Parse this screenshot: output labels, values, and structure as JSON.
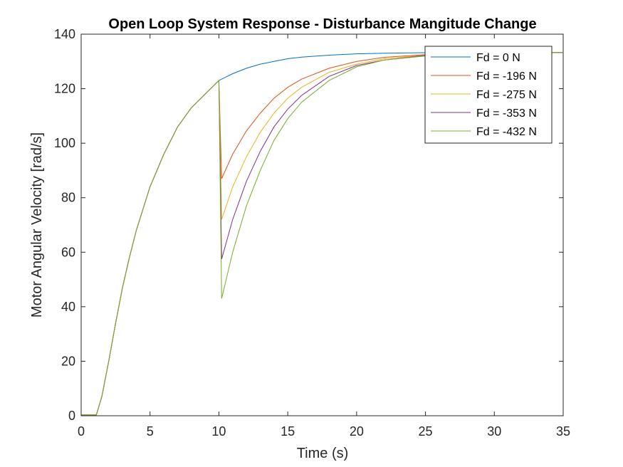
{
  "chart_data": {
    "type": "line",
    "title": "Open Loop System Response - Disturbance Mangitude Change",
    "xlabel": "Time (s)",
    "ylabel": "Motor Angular Velocity [rad/s]",
    "xlim": [
      0,
      35
    ],
    "ylim": [
      0,
      140
    ],
    "xticks": [
      "0",
      "5",
      "10",
      "15",
      "20",
      "25",
      "30",
      "35"
    ],
    "yticks": [
      "0",
      "20",
      "40",
      "60",
      "80",
      "100",
      "120",
      "140"
    ],
    "grid": false,
    "legend_position": "top-right",
    "series": [
      {
        "name": "Fd = 0 N",
        "color": "#0072BD",
        "x": [
          0,
          1.1,
          1.5,
          2,
          2.5,
          3,
          3.5,
          4,
          5,
          6,
          7,
          8,
          9,
          10,
          11,
          12,
          13,
          14,
          15,
          16,
          18,
          20,
          22,
          25,
          28,
          30,
          35
        ],
        "y": [
          0.3,
          0.3,
          7,
          20,
          34,
          47,
          58,
          68,
          84,
          96,
          106,
          113,
          118,
          123,
          125.5,
          127.5,
          129,
          130,
          131,
          131.6,
          132.3,
          132.8,
          133.0,
          133.2,
          133.3,
          133.3,
          133.3
        ]
      },
      {
        "name": "Fd = -196 N",
        "color": "#D95319",
        "x": [
          0,
          1.1,
          1.5,
          2,
          2.5,
          3,
          3.5,
          4,
          5,
          6,
          7,
          8,
          9,
          10,
          10.2,
          11,
          12,
          13,
          14,
          15,
          16,
          18,
          20,
          22,
          25,
          28,
          30,
          35
        ],
        "y": [
          0.3,
          0.3,
          7,
          20,
          34,
          47,
          58,
          68,
          84,
          96,
          106,
          113,
          118,
          123,
          87,
          96,
          104.5,
          111,
          116.5,
          120.5,
          123.5,
          127.5,
          130,
          131.5,
          132.5,
          133.1,
          133.2,
          133.3
        ]
      },
      {
        "name": "Fd = -275 N",
        "color": "#EDB120",
        "x": [
          0,
          1.1,
          1.5,
          2,
          2.5,
          3,
          3.5,
          4,
          5,
          6,
          7,
          8,
          9,
          10,
          10.2,
          11,
          12,
          13,
          14,
          15,
          16,
          18,
          20,
          22,
          25,
          28,
          30,
          35
        ],
        "y": [
          0.3,
          0.3,
          7,
          20,
          34,
          47,
          58,
          68,
          84,
          96,
          106,
          113,
          118,
          123,
          72,
          84,
          95,
          104,
          111,
          116.5,
          120.5,
          126,
          129,
          131,
          132.3,
          133,
          133.2,
          133.3
        ]
      },
      {
        "name": "Fd = -353 N",
        "color": "#7E2F8E",
        "x": [
          0,
          1.1,
          1.5,
          2,
          2.5,
          3,
          3.5,
          4,
          5,
          6,
          7,
          8,
          9,
          10,
          10.2,
          11,
          12,
          13,
          14,
          15,
          16,
          18,
          20,
          22,
          25,
          28,
          30,
          35
        ],
        "y": [
          0.3,
          0.3,
          7,
          20,
          34,
          47,
          58,
          68,
          84,
          96,
          106,
          113,
          118,
          123,
          57.5,
          72,
          86,
          97,
          106,
          112.5,
          117.5,
          124.5,
          128.5,
          130.5,
          132.2,
          133,
          133.2,
          133.3
        ]
      },
      {
        "name": "Fd = -432 N",
        "color": "#77AC30",
        "x": [
          0,
          1.1,
          1.5,
          2,
          2.5,
          3,
          3.5,
          4,
          5,
          6,
          7,
          8,
          9,
          10,
          10.2,
          11,
          12,
          13,
          14,
          15,
          16,
          18,
          20,
          22,
          25,
          28,
          30,
          35
        ],
        "y": [
          0.3,
          0.3,
          7,
          20,
          34,
          47,
          58,
          68,
          84,
          96,
          106,
          113,
          118,
          123,
          43,
          60,
          77,
          90,
          101,
          109,
          115,
          123,
          128,
          130.5,
          132,
          133,
          133.2,
          133.3
        ]
      }
    ]
  }
}
